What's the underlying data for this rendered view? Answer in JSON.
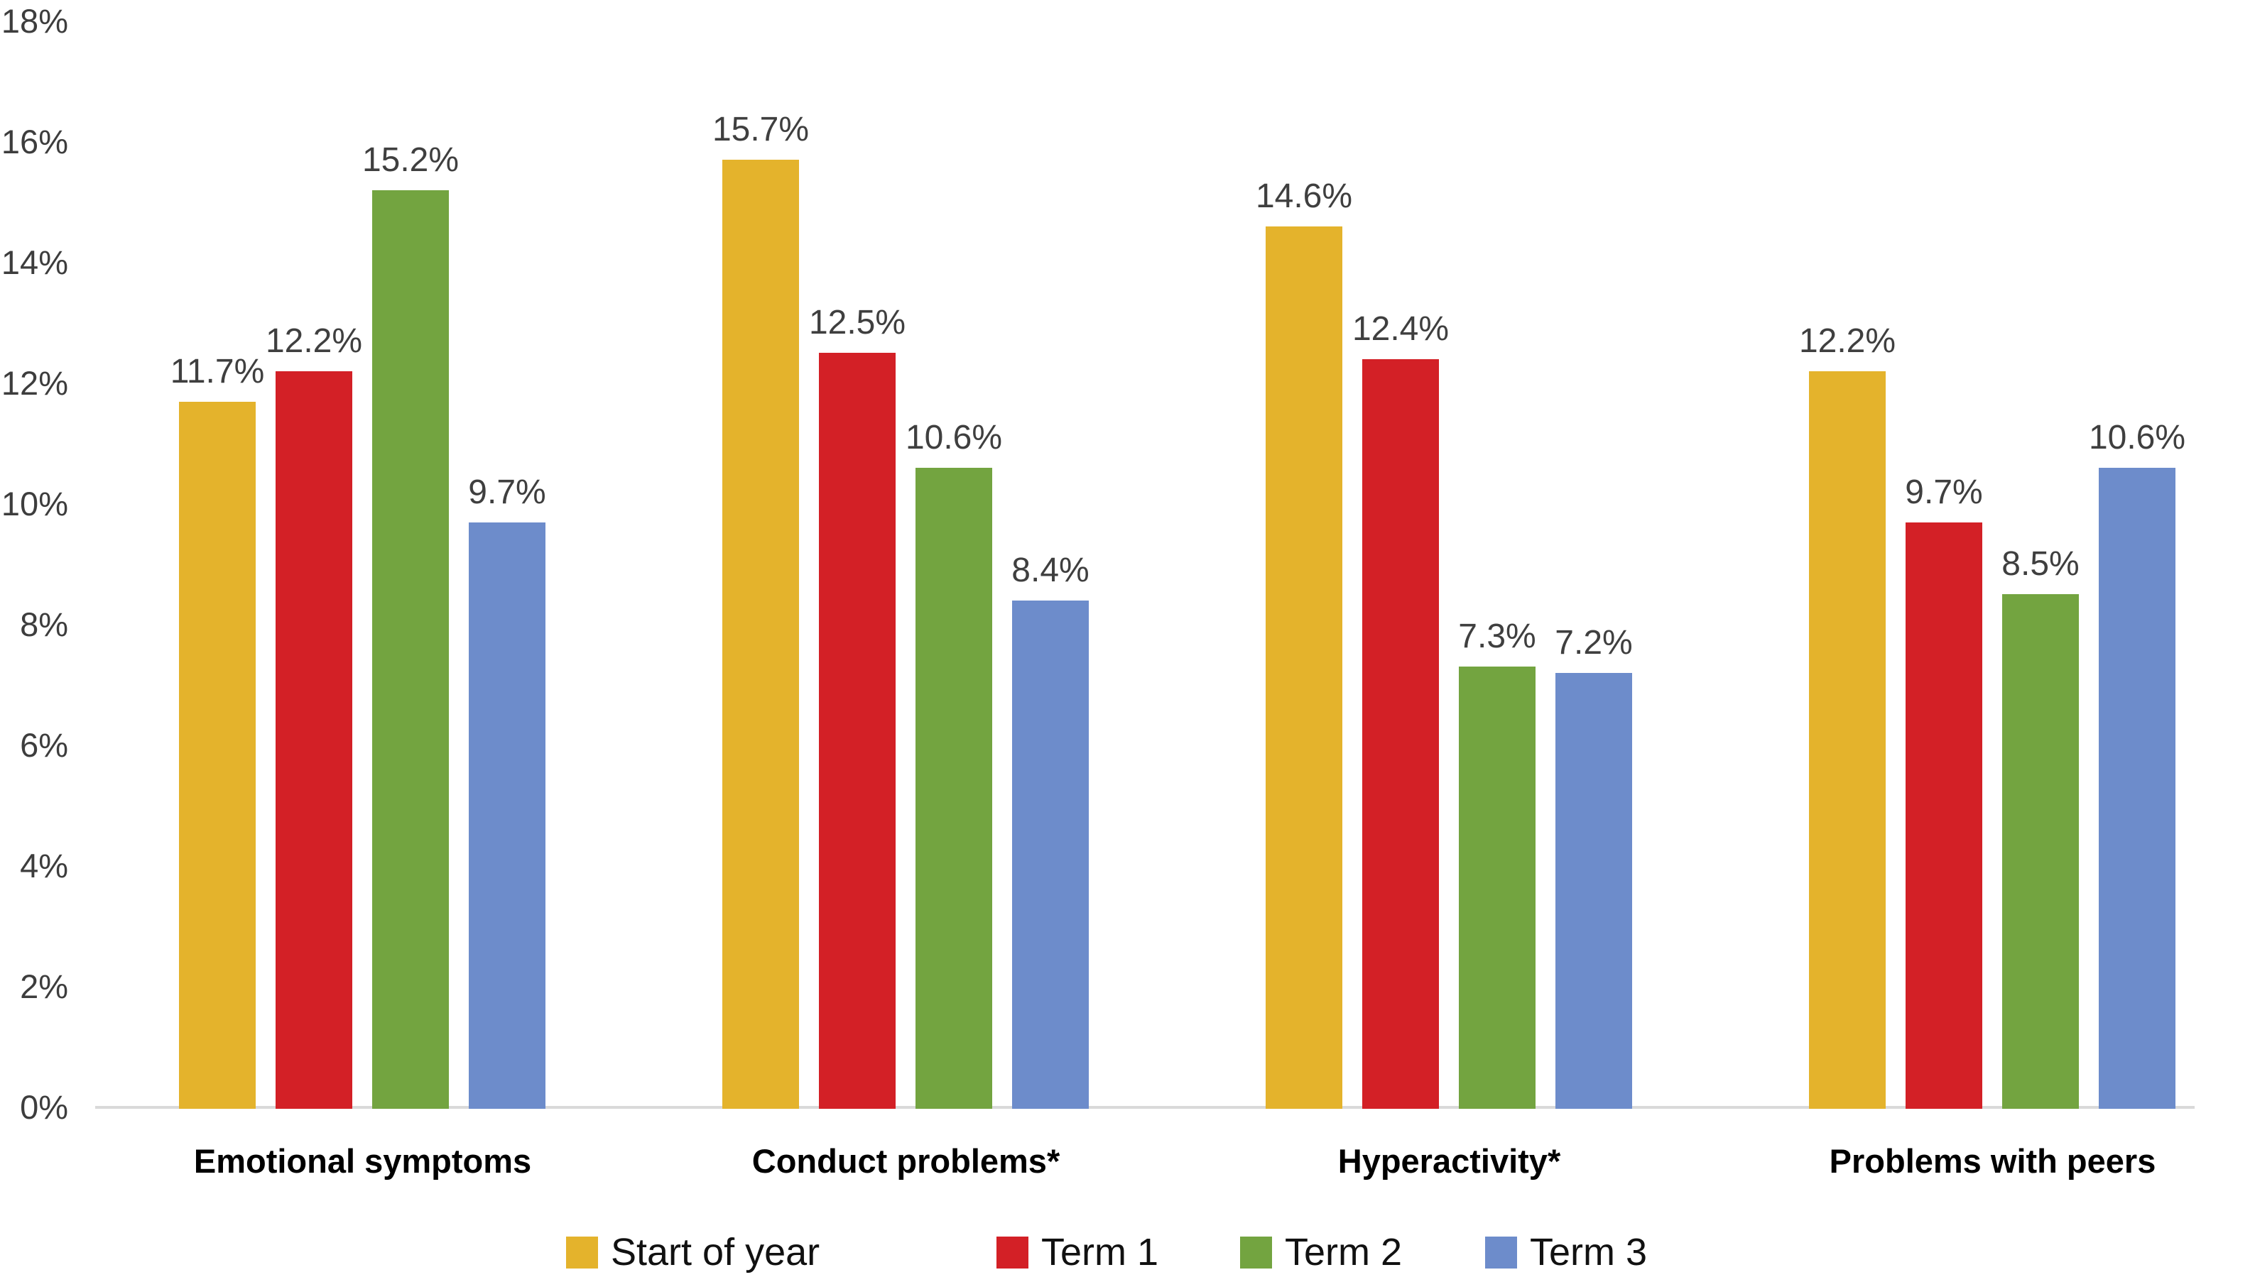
{
  "chart_data": {
    "type": "bar",
    "title": "",
    "categories": [
      "Emotional symptoms",
      "Conduct problems*",
      "Hyperactivity*",
      "Problems with peers"
    ],
    "series": [
      {
        "name": "Start of year",
        "color": "#E4B32C",
        "values": [
          11.7,
          15.7,
          14.6,
          12.2
        ]
      },
      {
        "name": "Term 1",
        "color": "#D32026",
        "values": [
          12.2,
          12.5,
          12.4,
          9.7
        ]
      },
      {
        "name": "Term 2",
        "color": "#73A440",
        "values": [
          15.2,
          10.6,
          7.3,
          8.5
        ]
      },
      {
        "name": "Term 3",
        "color": "#6D8CCB",
        "values": [
          9.7,
          8.4,
          7.2,
          10.6
        ]
      }
    ],
    "bar_value_labels": [
      [
        "11.7%",
        "12.2%",
        "15.2%",
        "9.7%"
      ],
      [
        "15.7%",
        "12.5%",
        "10.6%",
        "8.4%"
      ],
      [
        "14.6%",
        "12.4%",
        "7.3%",
        "7.2%"
      ],
      [
        "12.2%",
        "9.7%",
        "8.5%",
        "10.6%"
      ]
    ],
    "xlabel": "",
    "ylabel": "",
    "y_axis": {
      "min": 0,
      "max": 18,
      "step": 2,
      "tick_labels": [
        "0%",
        "2%",
        "4%",
        "6%",
        "8%",
        "10%",
        "12%",
        "14%",
        "16%",
        "18%"
      ]
    },
    "grid": false,
    "legend_position": "bottom"
  },
  "colors": {
    "axis_line": "#D9D9D9",
    "value_label_text": "#3F3F3F",
    "tick_label_text": "#3D3D3D",
    "category_label_text": "#000000",
    "background": "#FFFFFF"
  }
}
